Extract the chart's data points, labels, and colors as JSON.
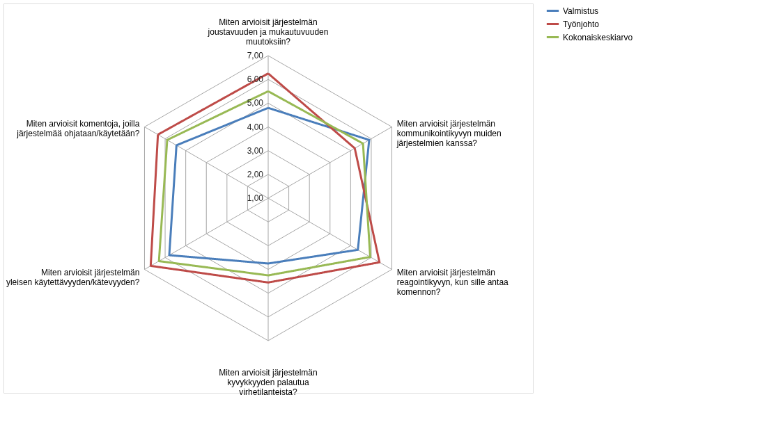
{
  "chart_data": {
    "type": "radar",
    "categories": [
      "Miten arvioisit järjestelmän joustavuuden ja mukautuvuuden muutoksiin?",
      "Miten arvioisit järjestelmän kommunikointikyvyn muiden järjestelmien kanssa?",
      "Miten arvioisit järjestelmän reagointikyvyn, kun sille antaa komennon?",
      "Miten arvioisit järjestelmän kyvykkyyden palautua virhetilanteista?",
      "Miten arvioisit järjestelmän yleisen käytettävyyden/kätevyyden?",
      "Miten arvioisit komentoja, joilla järjestelmää ohjataan/käytetään?"
    ],
    "series": [
      {
        "name": "Valmistus",
        "color": "#4a7ebb",
        "values": [
          4.8,
          5.9,
          5.35,
          3.75,
          5.8,
          5.45
        ]
      },
      {
        "name": "Työnjohto",
        "color": "#be4b48",
        "values": [
          6.25,
          5.2,
          6.4,
          4.55,
          6.7,
          6.35
        ]
      },
      {
        "name": "Kokonaiskeskiarvo",
        "color": "#98b954",
        "values": [
          5.5,
          5.6,
          5.95,
          4.25,
          6.3,
          5.9
        ]
      }
    ],
    "ylim": [
      1,
      7
    ],
    "yticks": [
      {
        "value": 1,
        "label": "1,00"
      },
      {
        "value": 2,
        "label": "2,00"
      },
      {
        "value": 3,
        "label": "3,00"
      },
      {
        "value": 4,
        "label": "4,00"
      },
      {
        "value": 5,
        "label": "5,00"
      },
      {
        "value": 6,
        "label": "6,00"
      },
      {
        "value": 7,
        "label": "7,00"
      }
    ],
    "grid": true,
    "legend": "right",
    "marker": "none",
    "line_style": "solid"
  }
}
